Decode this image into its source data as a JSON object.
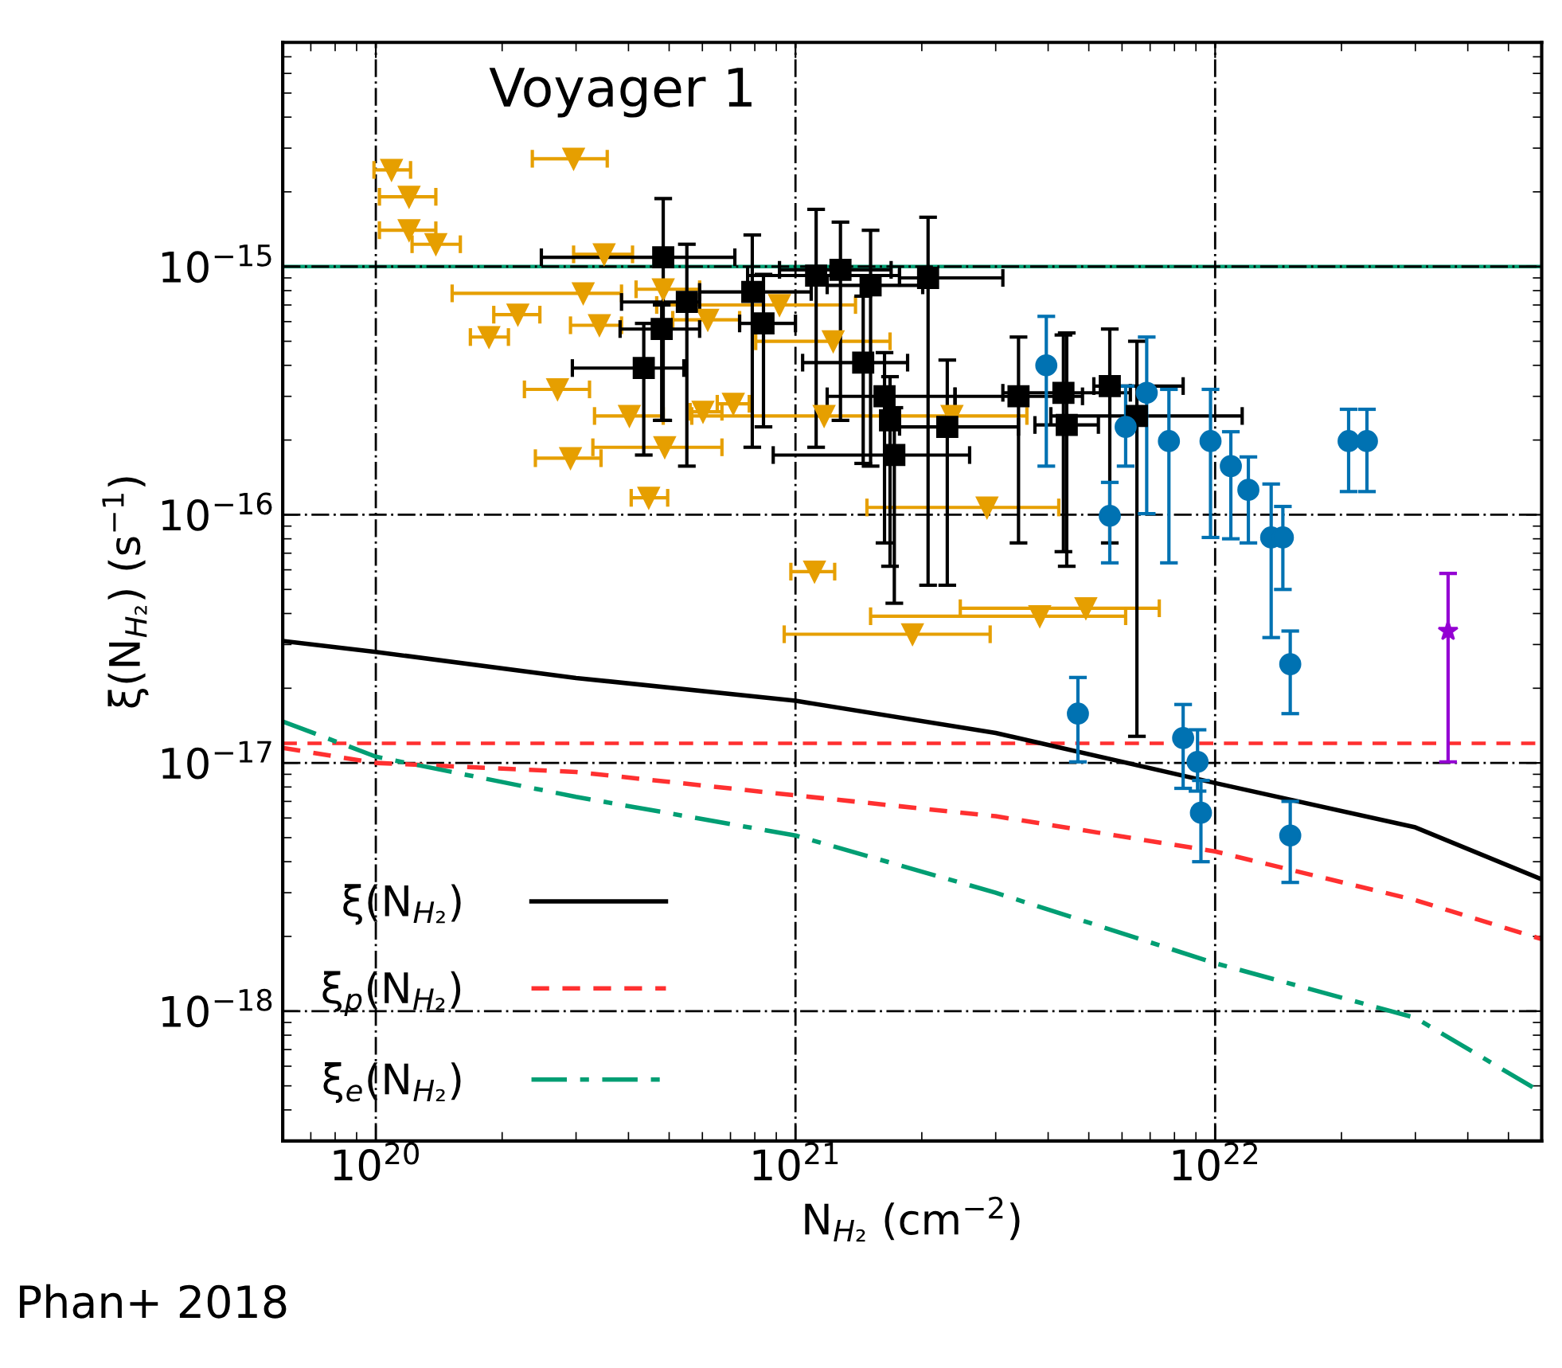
{
  "chart_data": {
    "type": "scatter",
    "xlabel": "N$_{H₂}$ (cm$^{−2}$)",
    "ylabel": "ξ(N$_{H₂}$) (s$^{−1}$)",
    "log": "xy",
    "xlim": [
      6e+19,
      6e+22
    ],
    "ylim": [
      3e-19,
      8e-15
    ],
    "xticks": [
      {
        "value": 1e+20,
        "label": "10$^{20}$"
      },
      {
        "value": 1e+21,
        "label": "10$^{21}$"
      },
      {
        "value": 1e+22,
        "label": "10$^{22}$"
      }
    ],
    "yticks": [
      {
        "value": 1e-18,
        "label": "10$^{−18}$"
      },
      {
        "value": 1e-17,
        "label": "10$^{−17}$"
      },
      {
        "value": 1e-16,
        "label": "10$^{−16}$"
      },
      {
        "value": 1e-15,
        "label": "10$^{−15}$"
      }
    ],
    "grid": true,
    "legend": "bottom left",
    "annotations": [
      "Phan+ 2018"
    ],
    "ref_lines": [
      {
        "axis": "y",
        "value": 1e-15,
        "label": "Voyager 1",
        "color": "#009e73",
        "line_style": "solid"
      },
      {
        "axis": "y",
        "value": 1.2e-17,
        "color": "#ff3030",
        "line_style": "dashed"
      }
    ],
    "series": [
      {
        "color": "#e69f00",
        "marker": "triangle",
        "x": [
          1.09e+20,
          1.2e+20,
          1.2e+20,
          1.39e+20,
          2.96e+20,
          3.5e+20,
          3.12e+20,
          2.18e+20,
          1.86e+20,
          3.41e+20,
          2.71e+20,
          4.02e+20,
          2.91e+20,
          4.47e+20,
          6.02e+20,
          7.11e+20,
          4.88e+20,
          6.18e+20,
          4.84e+20,
          9.16e+20,
          1.23e+21,
          1.17e+21,
          2.36e+21,
          2.86e+21,
          1.11e+21,
          1.9e+21,
          3.82e+21,
          4.92e+21
        ],
        "values": [
          2.45e-15,
          1.91e-15,
          1.4e-15,
          1.23e-15,
          2.72e-15,
          1.12e-15,
          7.8e-16,
          6.4e-16,
          5.2e-16,
          5.8e-16,
          3.2e-16,
          2.5e-16,
          1.69e-16,
          1.17e-16,
          2.6e-16,
          2.8e-16,
          1.87e-16,
          6.1e-16,
          8.1e-16,
          7e-16,
          5e-16,
          2.5e-16,
          2.5e-16,
          1.07e-16,
          5.9e-17,
          3.3e-17,
          3.9e-17,
          4.2e-17
        ],
        "xerrors": [
          [
            9.9e+19,
            1.21e+20
          ],
          [
            1.02e+20,
            1.39e+20
          ],
          [
            1.02e+20,
            1.39e+20
          ],
          [
            1.22e+20,
            1.59e+20
          ],
          [
            2.36e+20,
            3.56e+20
          ],
          [
            2.96e+20,
            4.09e+20
          ],
          [
            1.52e+20,
            3.85e+20
          ],
          [
            1.91e+20,
            2.46e+20
          ],
          [
            1.68e+20,
            2.07e+20
          ],
          [
            2.91e+20,
            3.85e+20
          ],
          [
            2.26e+20,
            3.23e+20
          ],
          [
            3.32e+20,
            4.84e+20
          ],
          [
            2.4e+20,
            3.44e+20
          ],
          [
            4.06e+20,
            4.96e+20
          ],
          [
            5.61e+20,
            6.68e+20
          ],
          [
            6.51e+20,
            7.76e+20
          ],
          [
            3.29e+20,
            6.68e+20
          ],
          [
            5.1e+20,
            7.36e+20
          ],
          [
            4.17e+20,
            5.91e+20
          ],
          [
            4.67e+20,
            1.39e+21
          ],
          [
            8.04e+20,
            1.68e+21
          ],
          [
            5.66e+20,
            1.77e+21
          ],
          [
            1.77e+21,
            3.56e+21
          ],
          [
            1.48e+21,
            4.24e+21
          ],
          [
            9.75e+20,
            1.24e+21
          ],
          [
            9.4e+20,
            2.91e+21
          ],
          [
            1.51e+21,
            6.12e+21
          ],
          [
            2.47e+21,
            7.36e+21
          ]
        ]
      },
      {
        "color": "#000000",
        "marker": "square",
        "x": [
          4.84e+20,
          5.51e+20,
          4.8e+20,
          4.35e+20,
          7.89e+20,
          8.39e+20,
          1.12e+21,
          1.28e+21,
          1.51e+21,
          2.07e+21,
          1.45e+21,
          1.63e+21,
          1.68e+21,
          1.72e+21,
          2.3e+21,
          3.4e+21,
          4.35e+21,
          4.43e+21,
          5.61e+21,
          6.51e+21
        ],
        "values": [
          1.09e-15,
          7.2e-16,
          5.6e-16,
          3.9e-16,
          7.9e-16,
          5.9e-16,
          9.2e-16,
          9.7e-16,
          8.4e-16,
          9e-16,
          4.1e-16,
          3e-16,
          2.4e-16,
          1.74e-16,
          2.26e-16,
          3e-16,
          3.1e-16,
          2.3e-16,
          3.3e-16,
          2.5e-16
        ],
        "errors": [
          [
            2.4e-16,
            1.88e-15
          ],
          [
            1.57e-16,
            1.23e-15
          ],
          [
            2.4e-16,
            7e-16
          ],
          [
            1.74e-16,
            5.9e-16
          ],
          [
            1.87e-16,
            1.34e-15
          ],
          [
            2.26e-16,
            9.3e-16
          ],
          [
            1.87e-16,
            1.7e-15
          ],
          [
            2.4e-16,
            1.51e-15
          ],
          [
            1.57e-16,
            1.4e-15
          ],
          [
            5.2e-17,
            1.58e-15
          ],
          [
            1.61e-16,
            7.6e-16
          ],
          [
            7.7e-17,
            4.5e-16
          ],
          [
            6.2e-17,
            3.6e-16
          ],
          [
            4.4e-17,
            2.7e-16
          ],
          [
            5.2e-17,
            4.2e-16
          ],
          [
            7.7e-17,
            5.2e-16
          ],
          [
            7.1e-17,
            5.3e-16
          ],
          [
            6.2e-17,
            5.4e-16
          ],
          [
            7.7e-17,
            5.6e-16
          ],
          [
            1.28e-17,
            5e-16
          ]
        ],
        "xerrors": [
          [
            2.48e+20,
            7.17e+20
          ],
          [
            3.85e+20,
            5.91e+20
          ],
          [
            3.82e+20,
            5.91e+20
          ],
          [
            2.94e+20,
            5.42e+20
          ],
          [
            5.91e+20,
            1.09e+21
          ],
          [
            7.36e+20,
            1e+21
          ],
          [
            7.69e+20,
            1.77e+21
          ],
          [
            9.16e+20,
            1.69e+21
          ],
          [
            1.19e+21,
            2.01e+21
          ],
          [
            1.77e+21,
            3.12e+21
          ],
          [
            1.04e+21,
            1.85e+21
          ],
          [
            1.19e+21,
            2.4e+21
          ],
          null,
          [
            8.85e+20,
            2.6e+21
          ],
          [
            1.77e+21,
            3.4e+21
          ],
          [
            2.4e+21,
            4.83e+21
          ],
          [
            3.12e+21,
            6.28e+21
          ],
          [
            3.72e+21,
            5.27e+21
          ],
          [
            5.14e+21,
            8.39e+21
          ],
          [
            4.06e+21,
            1.16e+22
          ]
        ]
      },
      {
        "color": "#0072b2",
        "marker": "circle",
        "x": [
          3.96e+21,
          5.61e+21,
          7.76e+21,
          9.75e+21,
          1.09e+22,
          1.2e+22,
          1.36e+22,
          1.45e+22,
          2.08e+22,
          2.3e+22,
          1.51e+22,
          4.71e+21,
          8.39e+21,
          9.08e+21,
          9.25e+21,
          1.51e+22,
          6.87e+21,
          6.12e+21
        ],
        "values": [
          4e-16,
          9.9e-17,
          1.98e-16,
          1.98e-16,
          1.57e-16,
          1.26e-16,
          8.1e-17,
          8.1e-17,
          1.98e-16,
          1.98e-16,
          2.5e-17,
          1.58e-17,
          1.26e-17,
          1.01e-17,
          6.3e-18,
          5.1e-18,
          3.1e-16,
          2.26e-16
        ],
        "errors": [
          [
            1.57e-16,
            6.3e-16
          ],
          [
            6.4e-17,
            1.35e-16
          ],
          [
            6.4e-17,
            3.2e-16
          ],
          [
            8.1e-17,
            3.2e-16
          ],
          [
            8e-17,
            2.16e-16
          ],
          [
            7.7e-17,
            1.71e-16
          ],
          [
            3.2e-17,
            1.33e-16
          ],
          [
            5e-17,
            1.08e-16
          ],
          [
            1.24e-16,
            2.66e-16
          ],
          [
            1.24e-16,
            2.66e-16
          ],
          [
            1.58e-17,
            3.4e-17
          ],
          [
            1.01e-17,
            2.21e-17
          ],
          [
            7.9e-18,
            1.72e-17
          ],
          [
            7.7e-18,
            1.36e-17
          ],
          [
            4e-18,
            8.5e-18
          ],
          [
            3.3e-18,
            7e-18
          ],
          [
            1.01e-16,
            5.2e-16
          ],
          [
            1.57e-16,
            3.3e-16
          ]
        ]
      },
      {
        "color": "#9400d3",
        "marker": "star",
        "x": [
          3.59e+22
        ],
        "values": [
          3.4e-17
        ],
        "errors": [
          [
            1.01e-17,
            5.8e-17
          ]
        ]
      },
      {
        "type": "line",
        "name": "ξ(N$_{H₂}$)",
        "color": "#000000",
        "line_style": "solid",
        "x": [
          6e+19,
          1e+20,
          3e+20,
          1e+21,
          3e+21,
          1e+22,
          3e+22,
          6e+22
        ],
        "values": [
          3.1e-17,
          2.8e-17,
          2.2e-17,
          1.78e-17,
          1.32e-17,
          8.3e-18,
          5.5e-18,
          3.4e-18
        ]
      },
      {
        "type": "line",
        "name": "ξ$_{p}$(N$_{H₂}$)",
        "color": "#ff3030",
        "line_style": "dashed",
        "x": [
          6e+19,
          1e+20,
          3e+20,
          1e+21,
          3e+21,
          1e+22,
          3e+22,
          6e+22
        ],
        "values": [
          1.15e-17,
          1e-17,
          9.2e-18,
          7.4e-18,
          6.1e-18,
          4.4e-18,
          2.8e-18,
          1.95e-18
        ]
      },
      {
        "type": "line",
        "name": "ξ$_{e}$(N$_{H₂}$)",
        "color": "#009e73",
        "line_style": "dashdot",
        "x": [
          6e+19,
          1e+20,
          3e+20,
          1e+21,
          3e+21,
          1e+22,
          3e+22,
          6e+22
        ],
        "values": [
          1.47e-17,
          1.06e-17,
          7.3e-18,
          5.1e-18,
          3e-18,
          1.56e-18,
          9.4e-19,
          4.7e-19
        ]
      }
    ]
  }
}
